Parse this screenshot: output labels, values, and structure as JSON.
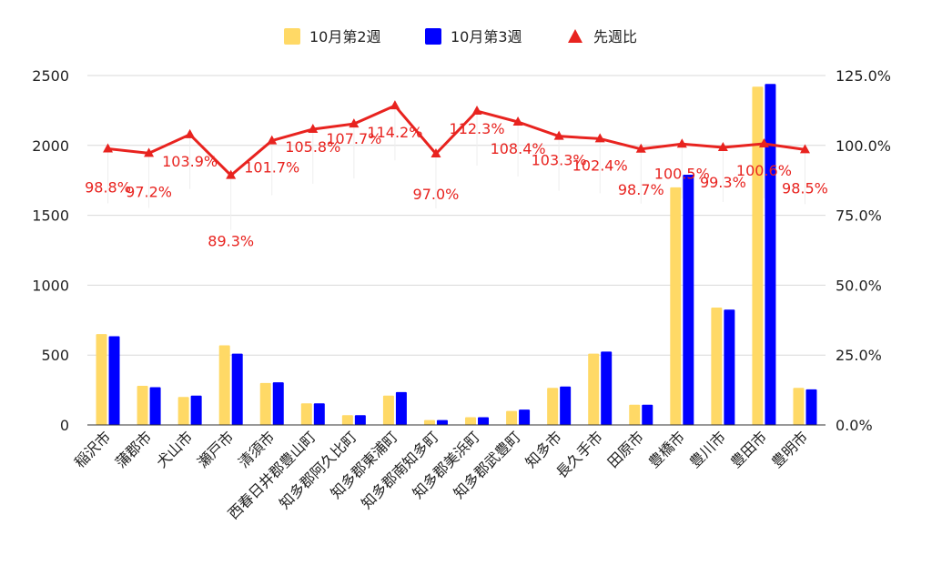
{
  "chart_data": {
    "type": "bar",
    "categories": [
      "稲沢市",
      "蒲郡市",
      "犬山市",
      "瀬戸市",
      "清須市",
      "西春日井郡豊山町",
      "知多郡阿久比町",
      "知多郡東浦町",
      "知多郡南知多町",
      "知多郡美浜町",
      "知多郡武豊町",
      "知多市",
      "長久手市",
      "田原市",
      "豊橋市",
      "豊川市",
      "豊田市",
      "豊明市"
    ],
    "series": [
      {
        "name": "10月第2週",
        "axis": "left",
        "color": "#ffd966",
        "values": [
          650,
          280,
          200,
          570,
          300,
          155,
          70,
          210,
          35,
          55,
          100,
          265,
          510,
          145,
          1700,
          840,
          2420,
          265
        ]
      },
      {
        "name": "10月第3週",
        "axis": "left",
        "color": "#0000ff",
        "values": [
          635,
          270,
          210,
          510,
          305,
          155,
          70,
          235,
          35,
          55,
          110,
          275,
          525,
          145,
          1790,
          825,
          2440,
          255
        ]
      },
      {
        "name": "先週比",
        "type": "line",
        "axis": "right",
        "color": "#e8231f",
        "values": [
          98.8,
          97.2,
          103.9,
          89.3,
          101.7,
          105.8,
          107.7,
          114.2,
          97.0,
          112.3,
          108.4,
          103.3,
          102.4,
          98.7,
          100.5,
          99.3,
          100.6,
          98.5
        ],
        "labels": [
          "98.8%",
          "97.2%",
          "103.9%",
          "89.3%",
          "101.7%",
          "105.8%",
          "107.7%",
          "114.2%",
          "97.0%",
          "112.3%",
          "108.4%",
          "103.3%",
          "102.4%",
          "98.7%",
          "100.5%",
          "99.3%",
          "100.6%",
          "98.5%"
        ]
      }
    ],
    "y_left": {
      "min": 0,
      "max": 2500,
      "ticks": [
        "0",
        "500",
        "1000",
        "1500",
        "2000",
        "2500"
      ]
    },
    "y_right": {
      "min": 0,
      "max": 125,
      "ticks": [
        "0.0%",
        "25.0%",
        "50.0%",
        "75.0%",
        "100.0%",
        "125.0%"
      ]
    },
    "title": "",
    "xlabel": "",
    "ylabel": "",
    "grid": true,
    "legend_position": "top"
  }
}
